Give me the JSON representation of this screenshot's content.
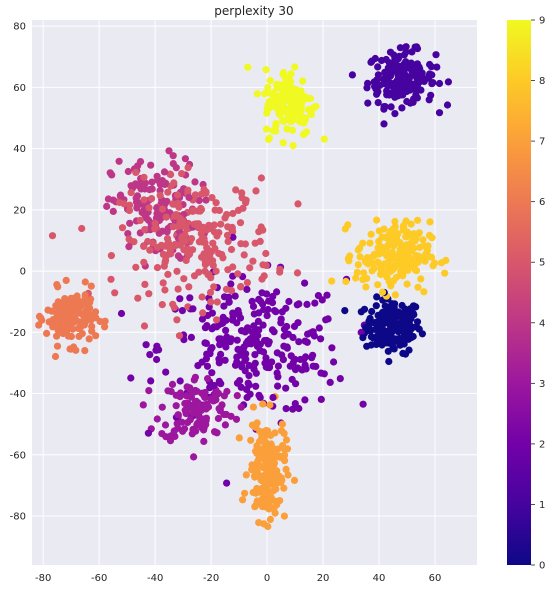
{
  "chart_data": {
    "type": "scatter",
    "title": "perplexity 30",
    "xlabel": "",
    "ylabel": "",
    "xlim": [
      -84,
      75
    ],
    "ylim": [
      -96,
      82
    ],
    "x_ticks": [
      -80,
      -60,
      -40,
      -20,
      0,
      20,
      40,
      60
    ],
    "y_ticks": [
      -80,
      -60,
      -40,
      -20,
      0,
      20,
      40,
      60,
      80
    ],
    "grid": true,
    "background": "#eaeaf2",
    "grid_color": "#ffffff",
    "colormap": "plasma",
    "colormap_stops": [
      "#0d0887",
      "#46039f",
      "#7201a8",
      "#9c179e",
      "#bd3786",
      "#d8576b",
      "#ed7953",
      "#fb9f3a",
      "#fdca26",
      "#f0f921"
    ],
    "colorbar": {
      "min": 0,
      "max": 9,
      "ticks": [
        0,
        1,
        2,
        3,
        4,
        5,
        6,
        7,
        8,
        9
      ]
    },
    "clusters": [
      {
        "label": 0,
        "center": [
          45,
          -18
        ],
        "spread": [
          9,
          8
        ],
        "count": 180
      },
      {
        "label": 1,
        "center": [
          48,
          63
        ],
        "spread": [
          11,
          8
        ],
        "count": 170
      },
      {
        "label": 2,
        "center": [
          -5,
          -25
        ],
        "spread": [
          30,
          20
        ],
        "count": 280
      },
      {
        "label": 3,
        "center": [
          -25,
          -45
        ],
        "spread": [
          12,
          10
        ],
        "count": 120
      },
      {
        "label": 4,
        "center": [
          -40,
          20
        ],
        "spread": [
          14,
          15
        ],
        "count": 150
      },
      {
        "label": 5,
        "center": [
          -25,
          10
        ],
        "spread": [
          25,
          18
        ],
        "count": 230
      },
      {
        "label": 6,
        "center": [
          -70,
          -15
        ],
        "spread": [
          8,
          8
        ],
        "count": 160
      },
      {
        "label": 7,
        "center": [
          0,
          -65
        ],
        "spread": [
          6,
          15
        ],
        "count": 180
      },
      {
        "label": 8,
        "center": [
          45,
          5
        ],
        "spread": [
          12,
          10
        ],
        "count": 200
      },
      {
        "label": 9,
        "center": [
          8,
          55
        ],
        "spread": [
          8,
          10
        ],
        "count": 150
      }
    ]
  }
}
